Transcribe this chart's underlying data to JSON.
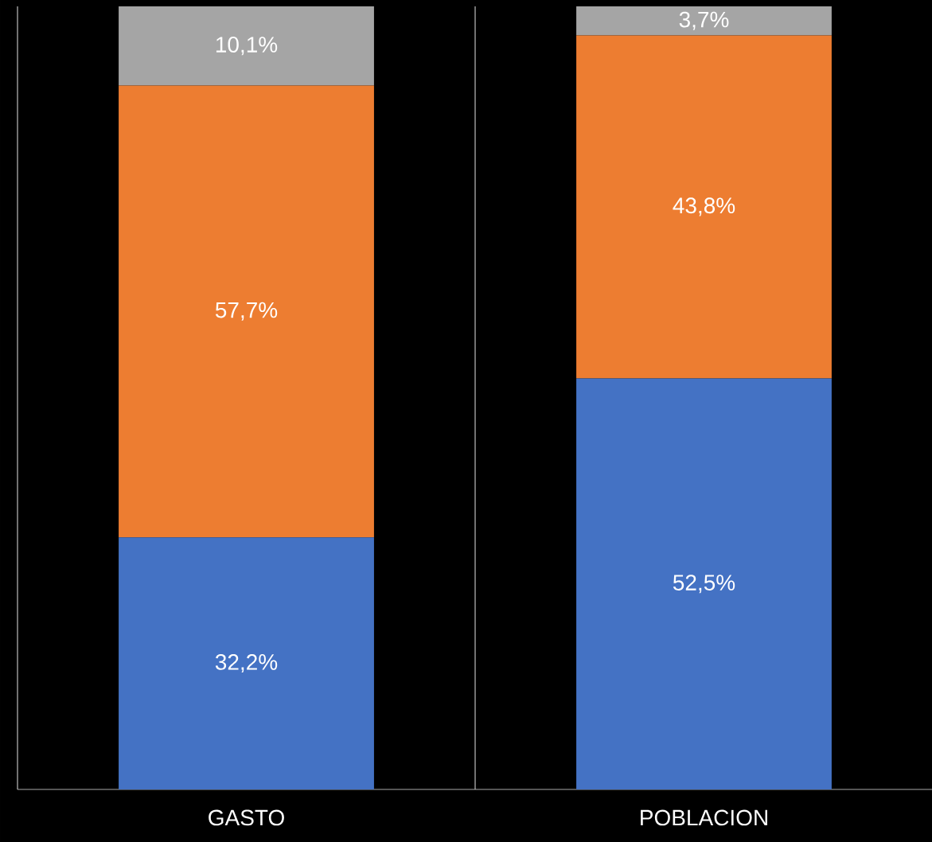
{
  "chart_data": {
    "type": "bar",
    "stacked": true,
    "categories": [
      "GASTO",
      "POBLACION"
    ],
    "series": [
      {
        "color": "#4472c4",
        "values": [
          32.2,
          52.5
        ],
        "value_labels": [
          "32,2%",
          "52,5%"
        ]
      },
      {
        "color": "#ed7d31",
        "values": [
          57.7,
          43.8
        ],
        "value_labels": [
          "57,7%",
          "43,8%"
        ]
      },
      {
        "color": "#a5a5a5",
        "values": [
          10.1,
          3.7
        ],
        "value_labels": [
          "10,1%",
          "3,7%"
        ]
      }
    ],
    "grid": "x"
  }
}
